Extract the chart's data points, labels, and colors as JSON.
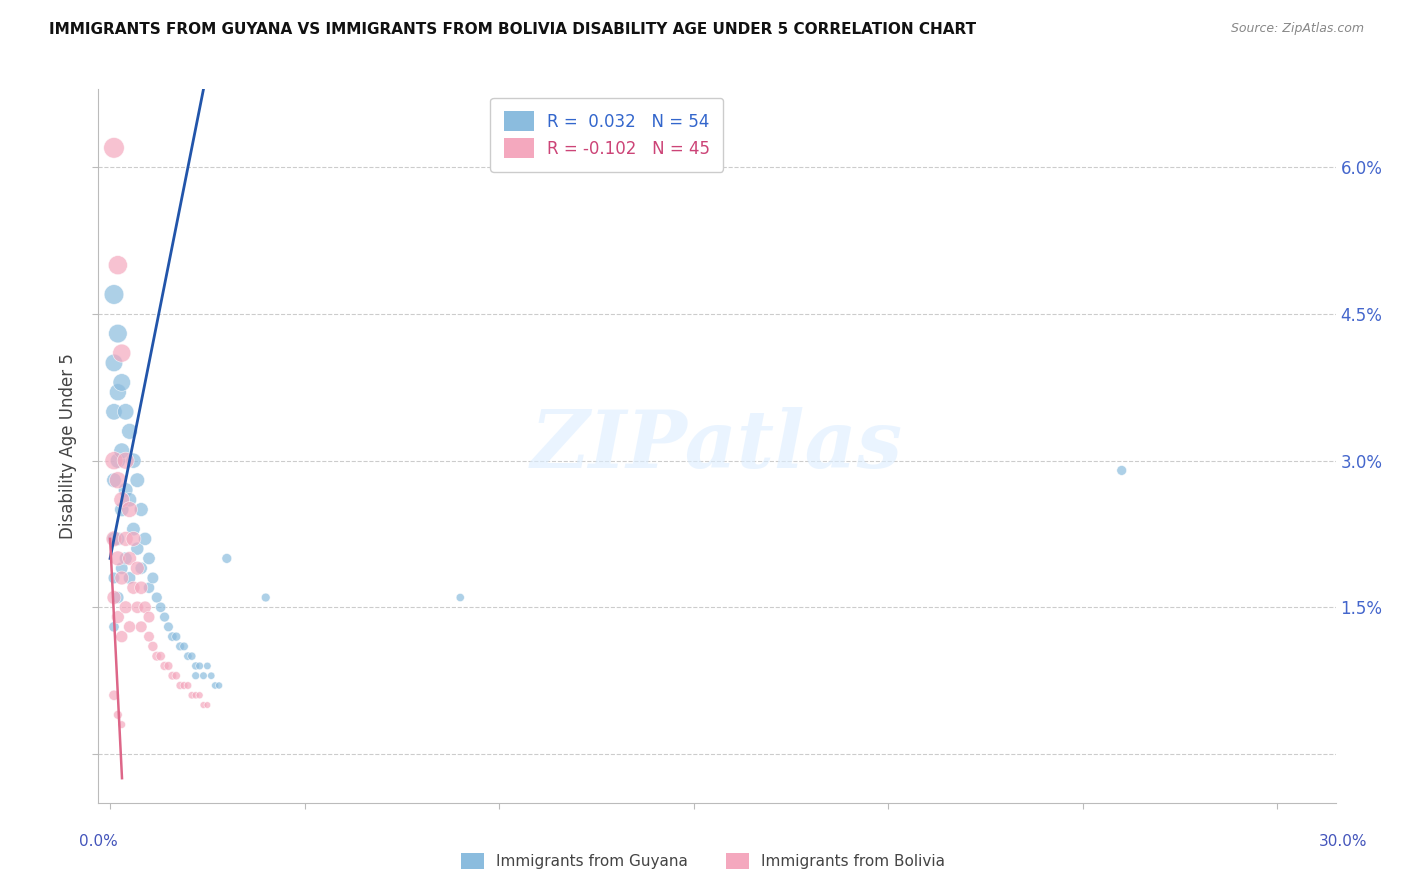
{
  "title": "IMMIGRANTS FROM GUYANA VS IMMIGRANTS FROM BOLIVIA DISABILITY AGE UNDER 5 CORRELATION CHART",
  "source": "Source: ZipAtlas.com",
  "ylabel": "Disability Age Under 5",
  "yticks": [
    0.0,
    0.015,
    0.03,
    0.045,
    0.06
  ],
  "ytick_labels": [
    "",
    "1.5%",
    "3.0%",
    "4.5%",
    "6.0%"
  ],
  "xticks": [
    0.0,
    0.05,
    0.1,
    0.15,
    0.2,
    0.25,
    0.3
  ],
  "xlim": [
    -0.003,
    0.315
  ],
  "ylim": [
    -0.005,
    0.068
  ],
  "guyana_R": 0.032,
  "guyana_N": 54,
  "bolivia_R": -0.102,
  "bolivia_N": 45,
  "guyana_color": "#8BBCDE",
  "bolivia_color": "#F4A8BE",
  "guyana_line_color": "#2255AA",
  "bolivia_line_color": "#DD6688",
  "watermark": "ZIPatlas",
  "guyana_x": [
    0.001,
    0.001,
    0.001,
    0.001,
    0.001,
    0.001,
    0.001,
    0.002,
    0.002,
    0.002,
    0.002,
    0.002,
    0.003,
    0.003,
    0.003,
    0.003,
    0.004,
    0.004,
    0.004,
    0.005,
    0.005,
    0.005,
    0.006,
    0.006,
    0.007,
    0.007,
    0.008,
    0.008,
    0.009,
    0.01,
    0.01,
    0.011,
    0.012,
    0.013,
    0.014,
    0.015,
    0.016,
    0.017,
    0.018,
    0.019,
    0.02,
    0.021,
    0.022,
    0.022,
    0.023,
    0.024,
    0.025,
    0.026,
    0.027,
    0.028,
    0.03,
    0.04,
    0.09,
    0.26
  ],
  "guyana_y": [
    0.047,
    0.04,
    0.035,
    0.028,
    0.022,
    0.018,
    0.013,
    0.043,
    0.037,
    0.03,
    0.022,
    0.016,
    0.038,
    0.031,
    0.025,
    0.019,
    0.035,
    0.027,
    0.02,
    0.033,
    0.026,
    0.018,
    0.03,
    0.023,
    0.028,
    0.021,
    0.025,
    0.019,
    0.022,
    0.02,
    0.017,
    0.018,
    0.016,
    0.015,
    0.014,
    0.013,
    0.012,
    0.012,
    0.011,
    0.011,
    0.01,
    0.01,
    0.009,
    0.008,
    0.009,
    0.008,
    0.009,
    0.008,
    0.007,
    0.007,
    0.02,
    0.016,
    0.016,
    0.029
  ],
  "guyana_sizes": [
    200,
    160,
    140,
    110,
    90,
    70,
    55,
    180,
    150,
    120,
    95,
    75,
    160,
    130,
    105,
    80,
    140,
    110,
    85,
    130,
    105,
    80,
    120,
    95,
    110,
    88,
    100,
    78,
    90,
    80,
    65,
    70,
    60,
    55,
    50,
    48,
    45,
    42,
    40,
    38,
    36,
    35,
    33,
    32,
    31,
    30,
    29,
    28,
    27,
    26,
    50,
    40,
    35,
    50
  ],
  "bolivia_x": [
    0.001,
    0.001,
    0.001,
    0.001,
    0.002,
    0.002,
    0.002,
    0.002,
    0.003,
    0.003,
    0.003,
    0.003,
    0.004,
    0.004,
    0.004,
    0.005,
    0.005,
    0.005,
    0.006,
    0.006,
    0.007,
    0.007,
    0.008,
    0.008,
    0.009,
    0.01,
    0.01,
    0.011,
    0.012,
    0.013,
    0.014,
    0.015,
    0.016,
    0.017,
    0.018,
    0.019,
    0.02,
    0.021,
    0.022,
    0.023,
    0.024,
    0.025,
    0.001,
    0.002,
    0.003
  ],
  "bolivia_y": [
    0.062,
    0.03,
    0.022,
    0.016,
    0.05,
    0.028,
    0.02,
    0.014,
    0.041,
    0.026,
    0.018,
    0.012,
    0.03,
    0.022,
    0.015,
    0.025,
    0.02,
    0.013,
    0.022,
    0.017,
    0.019,
    0.015,
    0.017,
    0.013,
    0.015,
    0.014,
    0.012,
    0.011,
    0.01,
    0.01,
    0.009,
    0.009,
    0.008,
    0.008,
    0.007,
    0.007,
    0.007,
    0.006,
    0.006,
    0.006,
    0.005,
    0.005,
    0.006,
    0.004,
    0.003
  ],
  "bolivia_sizes": [
    220,
    170,
    130,
    100,
    190,
    150,
    115,
    85,
    170,
    130,
    100,
    75,
    150,
    115,
    85,
    130,
    100,
    75,
    115,
    88,
    100,
    78,
    90,
    70,
    80,
    70,
    58,
    52,
    48,
    45,
    42,
    40,
    38,
    36,
    34,
    32,
    30,
    28,
    27,
    26,
    24,
    23,
    55,
    40,
    30
  ]
}
